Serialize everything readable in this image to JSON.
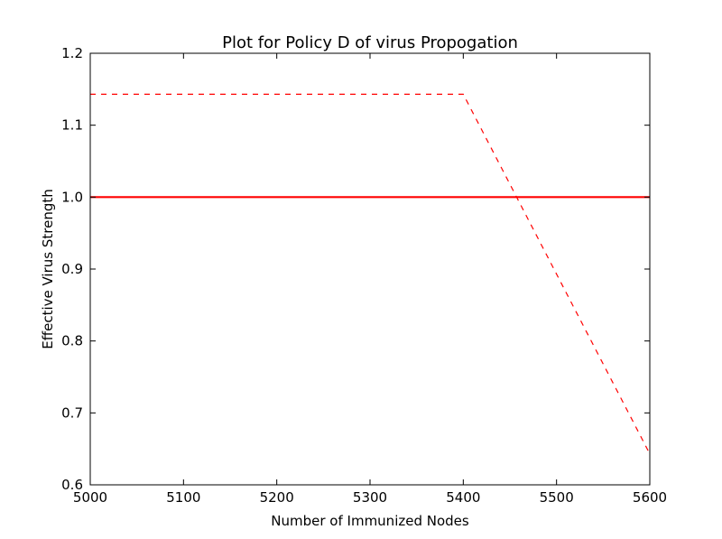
{
  "chart_data": {
    "type": "line",
    "title": "Plot for Policy D of virus Propogation",
    "xlabel": "Number of Immunized Nodes",
    "ylabel": "Effective Virus Strength",
    "xlim": [
      5000,
      5600
    ],
    "ylim": [
      0.6,
      1.2
    ],
    "xticks": [
      "5000",
      "5100",
      "5200",
      "5300",
      "5400",
      "5500",
      "5600"
    ],
    "yticks": [
      "0.6",
      "0.7",
      "0.8",
      "0.9",
      "1.0",
      "1.1",
      "1.2"
    ],
    "grid": false,
    "series": [
      {
        "style": "solid",
        "color": "#ff0000",
        "x": [
          5000,
          5600
        ],
        "y": [
          1.0,
          1.0
        ]
      },
      {
        "style": "dashed",
        "color": "#ff0000",
        "x": [
          5000,
          5400,
          5600
        ],
        "y": [
          1.143,
          1.143,
          0.643
        ]
      }
    ]
  }
}
